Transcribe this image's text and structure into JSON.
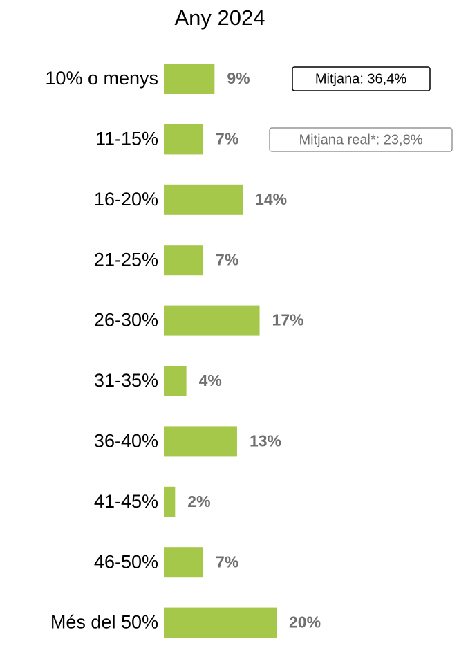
{
  "chart_data": {
    "type": "bar",
    "orientation": "horizontal",
    "title": "Any 2024",
    "categories": [
      "10% o menys",
      "11-15%",
      "16-20%",
      "21-25%",
      "26-30%",
      "31-35%",
      "36-40%",
      "41-45%",
      "46-50%",
      "Més del 50%"
    ],
    "values": [
      9,
      7,
      14,
      7,
      17,
      4,
      13,
      2,
      7,
      20
    ],
    "value_labels": [
      "9%",
      "7%",
      "14%",
      "7%",
      "17%",
      "4%",
      "13%",
      "2%",
      "7%",
      "20%"
    ],
    "color": "#a5c74a",
    "annotations": [
      "Mitjana: 36,4%",
      "Mitjana real*: 23,8%"
    ]
  }
}
